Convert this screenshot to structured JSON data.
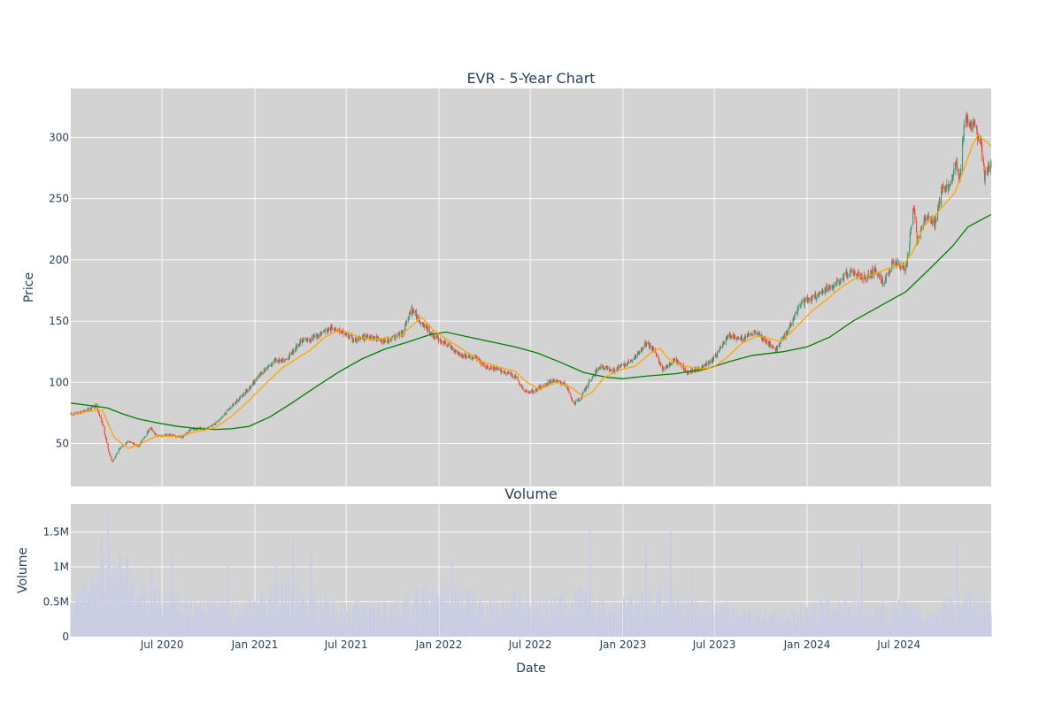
{
  "chart_data": [
    {
      "type": "candlestick",
      "title": "EVR - 5-Year Chart",
      "ylabel": "Price",
      "ylim": [
        15,
        340
      ],
      "yticks": [
        50,
        100,
        150,
        200,
        250,
        300
      ],
      "xlim": [
        "2020-01-02",
        "2024-12-31"
      ],
      "xticks": [
        {
          "date": "2020-07-01",
          "label": "Jul 2020"
        },
        {
          "date": "2021-01-01",
          "label": "Jan 2021"
        },
        {
          "date": "2021-07-01",
          "label": "Jul 2021"
        },
        {
          "date": "2022-01-01",
          "label": "Jan 2022"
        },
        {
          "date": "2022-07-01",
          "label": "Jul 2022"
        },
        {
          "date": "2023-01-01",
          "label": "Jan 2023"
        },
        {
          "date": "2023-07-01",
          "label": "Jul 2023"
        },
        {
          "date": "2024-01-01",
          "label": "Jan 2024"
        },
        {
          "date": "2024-07-01",
          "label": "Jul 2024"
        }
      ],
      "grid": true,
      "colors": {
        "increasing": "#3d9970",
        "decreasing": "#ff4136",
        "ma_short": "#ffa500",
        "ma_long": "#008000",
        "plot_bg": "#d3d3d3"
      },
      "price_path": [
        [
          "2020-01-02",
          74
        ],
        [
          "2020-01-20",
          75
        ],
        [
          "2020-02-10",
          79
        ],
        [
          "2020-02-21",
          81
        ],
        [
          "2020-03-05",
          66
        ],
        [
          "2020-03-18",
          42
        ],
        [
          "2020-03-24",
          35
        ],
        [
          "2020-04-08",
          46
        ],
        [
          "2020-04-25",
          52
        ],
        [
          "2020-05-15",
          48
        ],
        [
          "2020-06-08",
          63
        ],
        [
          "2020-06-20",
          56
        ],
        [
          "2020-07-15",
          57
        ],
        [
          "2020-08-10",
          55
        ],
        [
          "2020-08-28",
          62
        ],
        [
          "2020-09-25",
          62
        ],
        [
          "2020-10-20",
          68
        ],
        [
          "2020-11-15",
          80
        ],
        [
          "2020-12-20",
          95
        ],
        [
          "2021-01-15",
          108
        ],
        [
          "2021-02-10",
          118
        ],
        [
          "2021-03-01",
          117
        ],
        [
          "2021-04-01",
          133
        ],
        [
          "2021-04-25",
          136
        ],
        [
          "2021-05-20",
          142
        ],
        [
          "2021-06-08",
          145
        ],
        [
          "2021-06-25",
          140
        ],
        [
          "2021-07-20",
          134
        ],
        [
          "2021-08-15",
          138
        ],
        [
          "2021-09-15",
          133
        ],
        [
          "2021-10-20",
          140
        ],
        [
          "2021-11-08",
          160
        ],
        [
          "2021-11-25",
          150
        ],
        [
          "2021-12-20",
          138
        ],
        [
          "2022-01-20",
          130
        ],
        [
          "2022-02-15",
          122
        ],
        [
          "2022-03-15",
          120
        ],
        [
          "2022-04-05",
          112
        ],
        [
          "2022-05-01",
          110
        ],
        [
          "2022-06-01",
          105
        ],
        [
          "2022-06-20",
          92
        ],
        [
          "2022-07-10",
          93
        ],
        [
          "2022-08-15",
          102
        ],
        [
          "2022-09-10",
          98
        ],
        [
          "2022-09-25",
          82
        ],
        [
          "2022-10-10",
          88
        ],
        [
          "2022-10-25",
          100
        ],
        [
          "2022-11-15",
          113
        ],
        [
          "2022-12-15",
          110
        ],
        [
          "2023-01-20",
          118
        ],
        [
          "2023-02-15",
          132
        ],
        [
          "2023-03-05",
          126
        ],
        [
          "2023-03-20",
          110
        ],
        [
          "2023-04-15",
          118
        ],
        [
          "2023-05-10",
          108
        ],
        [
          "2023-06-05",
          112
        ],
        [
          "2023-06-28",
          118
        ],
        [
          "2023-07-28",
          138
        ],
        [
          "2023-08-25",
          135
        ],
        [
          "2023-09-20",
          142
        ],
        [
          "2023-10-15",
          132
        ],
        [
          "2023-10-30",
          126
        ],
        [
          "2023-11-20",
          140
        ],
        [
          "2023-12-20",
          165
        ],
        [
          "2024-01-20",
          170
        ],
        [
          "2024-02-25",
          180
        ],
        [
          "2024-03-25",
          190
        ],
        [
          "2024-04-25",
          185
        ],
        [
          "2024-05-15",
          192
        ],
        [
          "2024-06-01",
          180
        ],
        [
          "2024-06-20",
          200
        ],
        [
          "2024-07-15",
          192
        ],
        [
          "2024-07-31",
          245
        ],
        [
          "2024-08-06",
          215
        ],
        [
          "2024-08-25",
          237
        ],
        [
          "2024-09-10",
          228
        ],
        [
          "2024-09-25",
          258
        ],
        [
          "2024-10-10",
          262
        ],
        [
          "2024-10-22",
          280
        ],
        [
          "2024-10-30",
          264
        ],
        [
          "2024-11-08",
          315
        ],
        [
          "2024-11-28",
          308
        ],
        [
          "2024-12-10",
          295
        ],
        [
          "2024-12-18",
          268
        ],
        [
          "2024-12-31",
          278
        ]
      ],
      "ma_short": [
        [
          "2020-01-02",
          74
        ],
        [
          "2020-02-20",
          77
        ],
        [
          "2020-03-05",
          77
        ],
        [
          "2020-03-28",
          55
        ],
        [
          "2020-04-25",
          46
        ],
        [
          "2020-05-20",
          50
        ],
        [
          "2020-06-20",
          56
        ],
        [
          "2020-08-01",
          56
        ],
        [
          "2020-09-10",
          60
        ],
        [
          "2020-10-15",
          63
        ],
        [
          "2020-11-15",
          72
        ],
        [
          "2020-12-20",
          85
        ],
        [
          "2021-01-25",
          100
        ],
        [
          "2021-02-25",
          112
        ],
        [
          "2021-03-20",
          118
        ],
        [
          "2021-04-20",
          126
        ],
        [
          "2021-05-20",
          137
        ],
        [
          "2021-06-20",
          143
        ],
        [
          "2021-07-20",
          138
        ],
        [
          "2021-08-20",
          135
        ],
        [
          "2021-10-15",
          137
        ],
        [
          "2021-11-10",
          147
        ],
        [
          "2021-11-28",
          153
        ],
        [
          "2021-12-20",
          143
        ],
        [
          "2022-01-20",
          134
        ],
        [
          "2022-02-20",
          126
        ],
        [
          "2022-03-20",
          118
        ],
        [
          "2022-04-25",
          113
        ],
        [
          "2022-06-01",
          109
        ],
        [
          "2022-06-25",
          100
        ],
        [
          "2022-07-20",
          94
        ],
        [
          "2022-08-20",
          100
        ],
        [
          "2022-09-20",
          96
        ],
        [
          "2022-10-15",
          88
        ],
        [
          "2022-11-01",
          92
        ],
        [
          "2022-11-25",
          104
        ],
        [
          "2022-12-25",
          110
        ],
        [
          "2023-01-25",
          113
        ],
        [
          "2023-02-25",
          124
        ],
        [
          "2023-03-15",
          128
        ],
        [
          "2023-03-30",
          120
        ],
        [
          "2023-04-25",
          114
        ],
        [
          "2023-06-01",
          111
        ],
        [
          "2023-06-28",
          112
        ],
        [
          "2023-07-25",
          120
        ],
        [
          "2023-08-25",
          132
        ],
        [
          "2023-09-25",
          138
        ],
        [
          "2023-10-25",
          135
        ],
        [
          "2023-11-10",
          133
        ],
        [
          "2023-12-10",
          145
        ],
        [
          "2024-01-10",
          158
        ],
        [
          "2024-02-10",
          168
        ],
        [
          "2024-03-10",
          178
        ],
        [
          "2024-04-10",
          186
        ],
        [
          "2024-05-10",
          188
        ],
        [
          "2024-06-10",
          193
        ],
        [
          "2024-07-10",
          196
        ],
        [
          "2024-07-28",
          206
        ],
        [
          "2024-08-20",
          228
        ],
        [
          "2024-09-10",
          236
        ],
        [
          "2024-09-25",
          243
        ],
        [
          "2024-10-20",
          255
        ],
        [
          "2024-11-05",
          272
        ],
        [
          "2024-11-25",
          295
        ],
        [
          "2024-12-05",
          302
        ],
        [
          "2024-12-31",
          293
        ]
      ],
      "ma_long": [
        [
          "2020-01-02",
          83
        ],
        [
          "2020-02-10",
          81
        ],
        [
          "2020-03-15",
          79
        ],
        [
          "2020-04-15",
          74
        ],
        [
          "2020-05-15",
          70
        ],
        [
          "2020-06-20",
          67
        ],
        [
          "2020-08-01",
          64
        ],
        [
          "2020-09-15",
          62
        ],
        [
          "2020-10-15",
          61.5
        ],
        [
          "2020-11-15",
          62
        ],
        [
          "2020-12-20",
          64
        ],
        [
          "2021-02-01",
          72
        ],
        [
          "2021-03-15",
          83
        ],
        [
          "2021-05-01",
          96
        ],
        [
          "2021-06-15",
          108
        ],
        [
          "2021-08-01",
          119
        ],
        [
          "2021-09-15",
          127
        ],
        [
          "2021-11-01",
          133
        ],
        [
          "2021-12-15",
          139
        ],
        [
          "2022-01-15",
          141
        ],
        [
          "2022-03-01",
          137
        ],
        [
          "2022-04-15",
          133
        ],
        [
          "2022-06-01",
          129
        ],
        [
          "2022-07-15",
          124
        ],
        [
          "2022-09-01",
          116
        ],
        [
          "2022-10-15",
          108
        ],
        [
          "2022-12-01",
          104
        ],
        [
          "2023-01-01",
          103
        ],
        [
          "2023-02-15",
          105
        ],
        [
          "2023-04-15",
          107
        ],
        [
          "2023-06-15",
          111
        ],
        [
          "2023-08-01",
          117
        ],
        [
          "2023-09-15",
          122
        ],
        [
          "2023-11-15",
          125
        ],
        [
          "2024-01-01",
          129
        ],
        [
          "2024-02-15",
          137
        ],
        [
          "2024-04-01",
          150
        ],
        [
          "2024-05-15",
          160
        ],
        [
          "2024-07-15",
          174
        ],
        [
          "2024-09-01",
          193
        ],
        [
          "2024-10-15",
          211
        ],
        [
          "2024-11-15",
          227
        ],
        [
          "2024-12-31",
          237
        ]
      ]
    },
    {
      "type": "bar",
      "title": "Volume",
      "xlabel": "Date",
      "ylabel": "Volume",
      "ylim": [
        0,
        1900000
      ],
      "yticks": [
        {
          "value": 0,
          "label": "0"
        },
        {
          "value": 500000,
          "label": "0.5M"
        },
        {
          "value": 1000000,
          "label": "1M"
        },
        {
          "value": 1500000,
          "label": "1.5M"
        }
      ],
      "grid": true,
      "colors": {
        "bar": "#c9cce6",
        "plot_bg": "#d3d3d3"
      },
      "volume_profile": [
        [
          "2020-01-02",
          450000
        ],
        [
          "2020-02-20",
          700000
        ],
        [
          "2020-03-20",
          1000000
        ],
        [
          "2020-04-20",
          800000
        ],
        [
          "2020-06-01",
          550000
        ],
        [
          "2020-08-01",
          450000
        ],
        [
          "2020-10-01",
          420000
        ],
        [
          "2020-12-01",
          400000
        ],
        [
          "2021-02-01",
          550000
        ],
        [
          "2021-03-15",
          650000
        ],
        [
          "2021-05-01",
          480000
        ],
        [
          "2021-07-01",
          400000
        ],
        [
          "2021-09-01",
          380000
        ],
        [
          "2021-11-01",
          480000
        ],
        [
          "2022-01-01",
          600000
        ],
        [
          "2022-02-15",
          600000
        ],
        [
          "2022-04-01",
          450000
        ],
        [
          "2022-06-15",
          500000
        ],
        [
          "2022-08-15",
          420000
        ],
        [
          "2022-10-01",
          560000
        ],
        [
          "2022-12-01",
          400000
        ],
        [
          "2023-02-01",
          520000
        ],
        [
          "2023-03-20",
          620000
        ],
        [
          "2023-05-01",
          450000
        ],
        [
          "2023-07-01",
          400000
        ],
        [
          "2023-09-01",
          300000
        ],
        [
          "2023-11-01",
          300000
        ],
        [
          "2024-01-01",
          350000
        ],
        [
          "2024-03-01",
          480000
        ],
        [
          "2024-05-01",
          380000
        ],
        [
          "2024-07-01",
          420000
        ],
        [
          "2024-09-01",
          300000
        ],
        [
          "2024-11-01",
          520000
        ],
        [
          "2024-12-31",
          480000
        ]
      ],
      "spikes": [
        [
          "2020-03-16",
          1780000
        ],
        [
          "2020-03-03",
          1420000
        ],
        [
          "2020-04-23",
          1150000
        ],
        [
          "2020-06-10",
          1000000
        ],
        [
          "2020-07-20",
          1200000
        ],
        [
          "2020-11-09",
          1010000
        ],
        [
          "2021-02-11",
          1010000
        ],
        [
          "2021-03-19",
          1400000
        ],
        [
          "2021-04-23",
          1220000
        ],
        [
          "2022-01-27",
          1050000
        ],
        [
          "2022-10-28",
          1530000
        ],
        [
          "2023-02-15",
          1360000
        ],
        [
          "2023-04-05",
          1500000
        ],
        [
          "2023-05-20",
          1000000
        ],
        [
          "2024-04-18",
          1300000
        ],
        [
          "2024-10-25",
          1360000
        ]
      ]
    }
  ]
}
